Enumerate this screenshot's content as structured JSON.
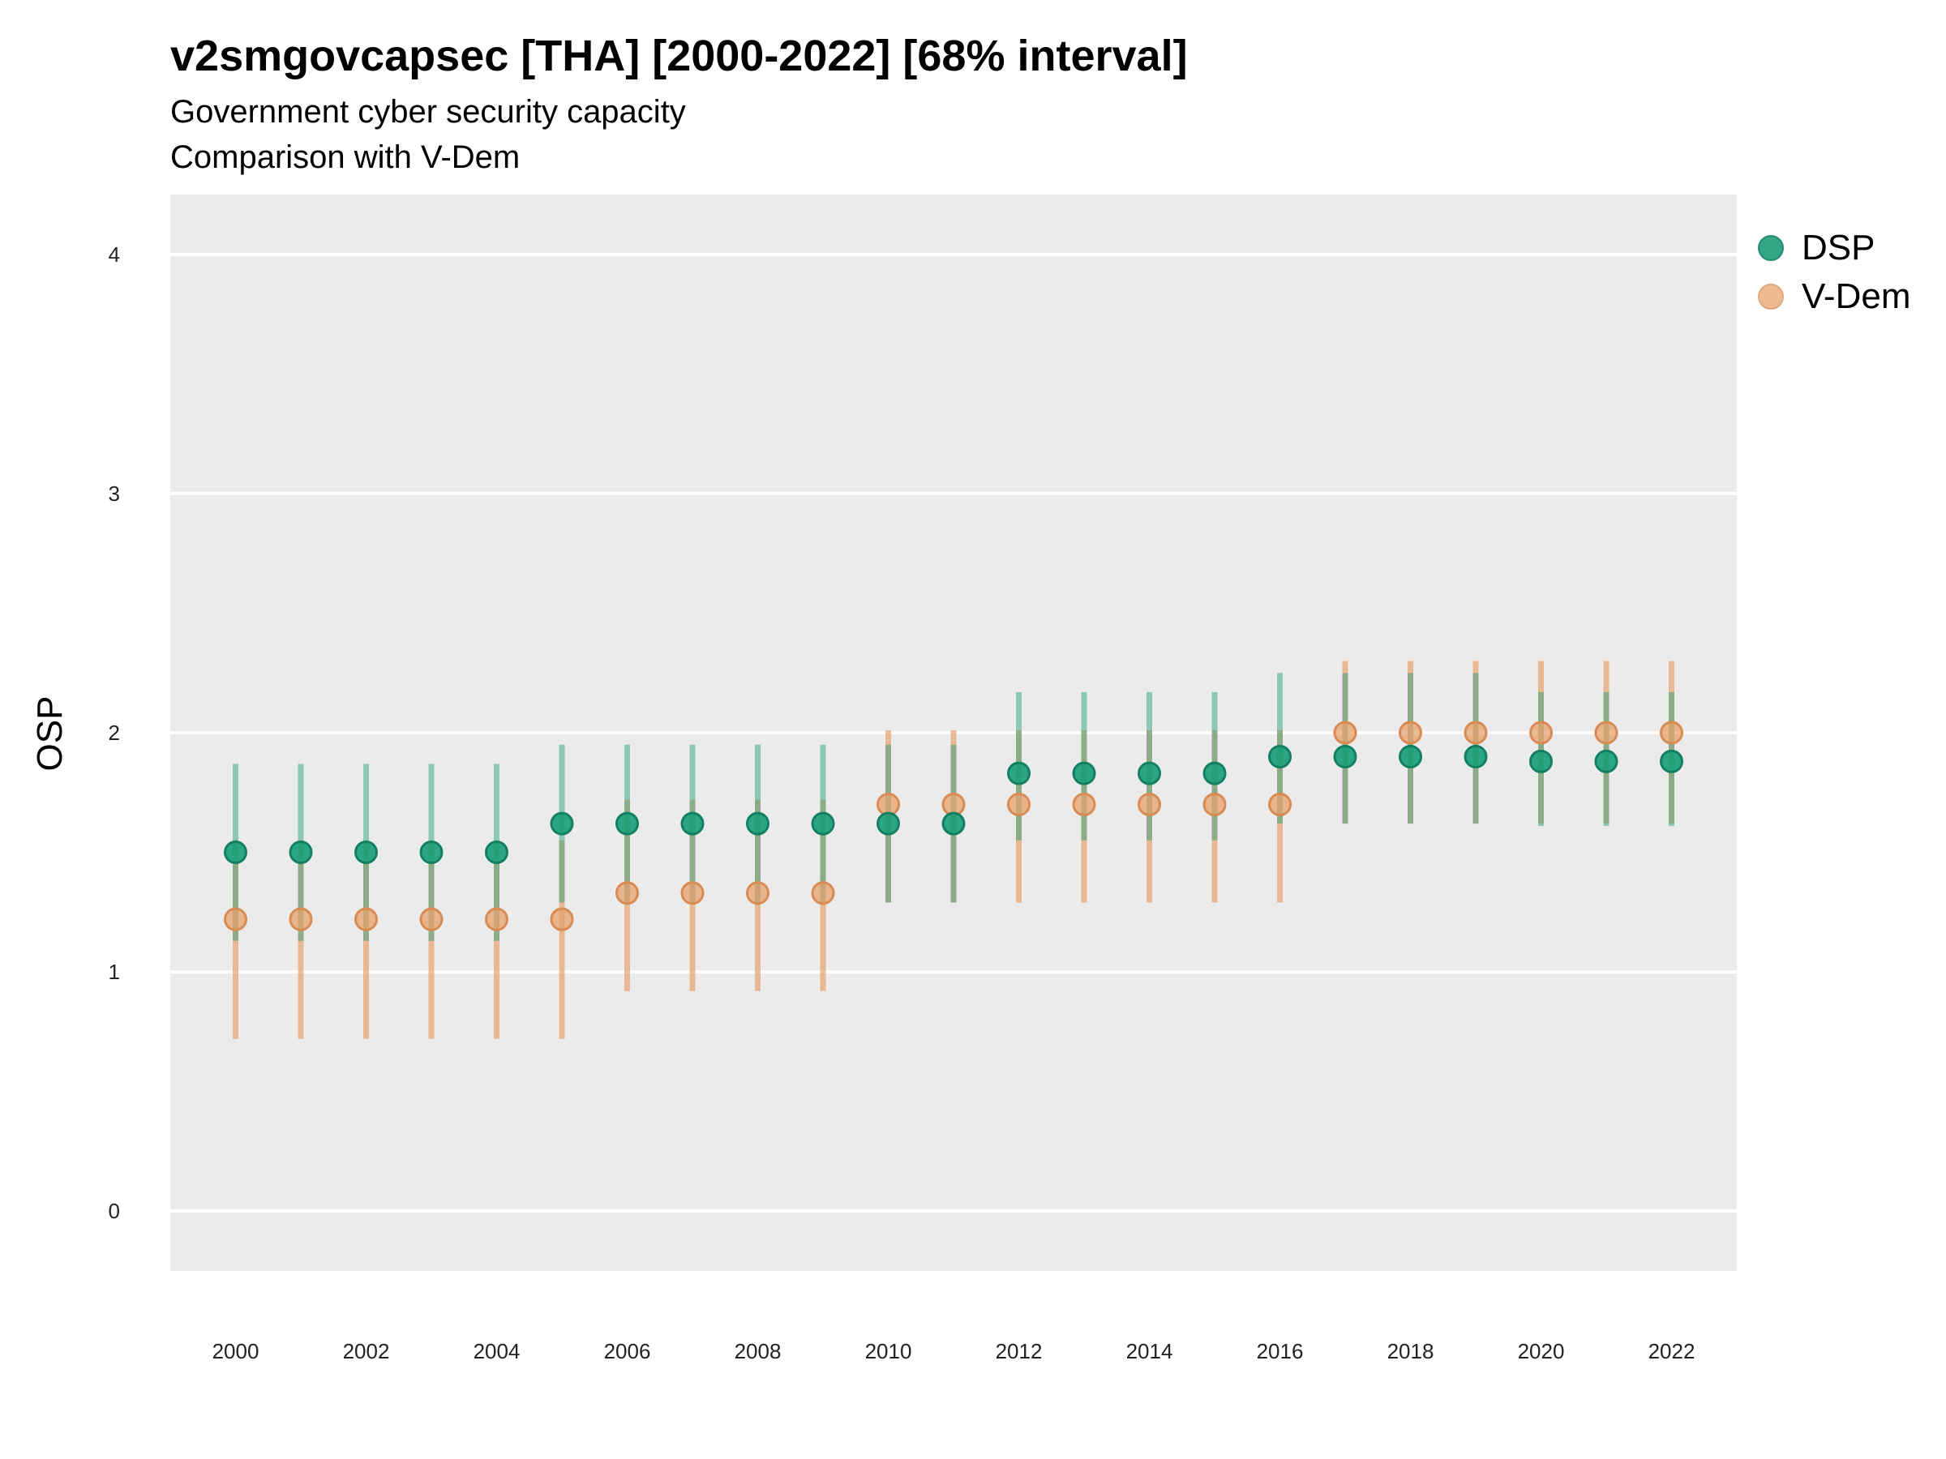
{
  "chart_data": {
    "type": "scatter",
    "title": "v2smgovcapsec [THA] [2000-2022] [68% interval]",
    "subtitle": "Government cyber security capacity",
    "subtitle2": "Comparison with V-Dem",
    "xlabel": "",
    "ylabel": "OSP",
    "ylim": [
      -0.25,
      4.25
    ],
    "xlim": [
      1999,
      2023
    ],
    "yticks": [
      0,
      1,
      2,
      3,
      4
    ],
    "xticks": [
      2000,
      2002,
      2004,
      2006,
      2008,
      2010,
      2012,
      2014,
      2016,
      2018,
      2020,
      2022
    ],
    "grid": true,
    "legend_position": "right",
    "x": [
      2000,
      2001,
      2002,
      2003,
      2004,
      2005,
      2006,
      2007,
      2008,
      2009,
      2010,
      2011,
      2012,
      2013,
      2014,
      2015,
      2016,
      2017,
      2018,
      2019,
      2020,
      2021,
      2022
    ],
    "series": [
      {
        "name": "DSP",
        "color": "#1b9e77",
        "values": [
          1.5,
          1.5,
          1.5,
          1.5,
          1.5,
          1.62,
          1.62,
          1.62,
          1.62,
          1.62,
          1.62,
          1.62,
          1.83,
          1.83,
          1.83,
          1.83,
          1.9,
          1.9,
          1.9,
          1.9,
          1.88,
          1.88,
          1.88
        ],
        "lower": [
          1.13,
          1.13,
          1.13,
          1.13,
          1.13,
          1.29,
          1.29,
          1.29,
          1.29,
          1.29,
          1.29,
          1.29,
          1.55,
          1.55,
          1.55,
          1.55,
          1.62,
          1.62,
          1.62,
          1.62,
          1.61,
          1.61,
          1.61
        ],
        "upper": [
          1.87,
          1.87,
          1.87,
          1.87,
          1.87,
          1.95,
          1.95,
          1.95,
          1.95,
          1.95,
          1.95,
          1.95,
          2.17,
          2.17,
          2.17,
          2.17,
          2.25,
          2.25,
          2.25,
          2.25,
          2.17,
          2.17,
          2.17
        ]
      },
      {
        "name": "V-Dem",
        "color": "#e6a26e",
        "values": [
          1.22,
          1.22,
          1.22,
          1.22,
          1.22,
          1.22,
          1.33,
          1.33,
          1.33,
          1.33,
          1.7,
          1.7,
          1.7,
          1.7,
          1.7,
          1.7,
          1.7,
          2.0,
          2.0,
          2.0,
          2.0,
          2.0,
          2.0
        ],
        "lower": [
          0.72,
          0.72,
          0.72,
          0.72,
          0.72,
          0.72,
          0.92,
          0.92,
          0.92,
          0.92,
          1.29,
          1.29,
          1.29,
          1.29,
          1.29,
          1.29,
          1.29,
          1.62,
          1.62,
          1.62,
          1.62,
          1.62,
          1.62
        ],
        "upper": [
          1.55,
          1.55,
          1.55,
          1.55,
          1.55,
          1.55,
          1.72,
          1.72,
          1.72,
          1.72,
          2.01,
          2.01,
          2.01,
          2.01,
          2.01,
          2.01,
          2.01,
          2.3,
          2.3,
          2.3,
          2.3,
          2.3,
          2.3
        ]
      }
    ]
  }
}
